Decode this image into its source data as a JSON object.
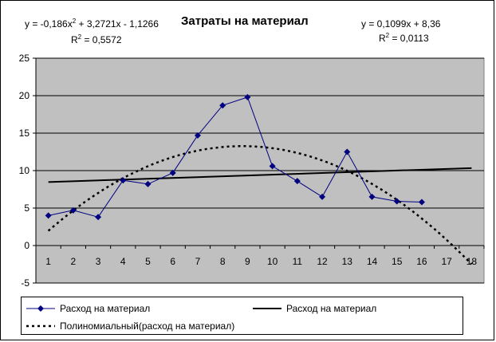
{
  "chart_data": {
    "type": "line",
    "title": "Затраты на материал",
    "x": [
      1,
      2,
      3,
      4,
      5,
      6,
      7,
      8,
      9,
      10,
      11,
      12,
      13,
      14,
      15,
      16
    ],
    "series": [
      {
        "name": "Расход на материал",
        "values": [
          4.0,
          4.7,
          3.8,
          8.7,
          8.2,
          9.7,
          14.7,
          18.7,
          19.8,
          10.6,
          8.6,
          6.5,
          12.5,
          6.5,
          5.9,
          5.8
        ],
        "color": "#000080"
      }
    ],
    "trendlines": [
      {
        "name": "Расход на материал",
        "kind": "linear",
        "slope": 0.1099,
        "intercept": 8.36,
        "x_range": [
          1,
          18
        ],
        "color": "#000000"
      },
      {
        "name": "Полиномиальный(расход на материал)",
        "kind": "polynomial",
        "coefficients": [
          -0.186,
          3.2721,
          -1.1266
        ],
        "x_range": [
          1,
          18
        ],
        "color": "#000000"
      }
    ],
    "x_ticks": [
      "1",
      "2",
      "3",
      "4",
      "5",
      "6",
      "7",
      "8",
      "9",
      "10",
      "11",
      "12",
      "13",
      "14",
      "15",
      "16",
      "17",
      "18"
    ],
    "y_ticks": [
      "25",
      "20",
      "15",
      "10",
      "5",
      "0",
      "-5"
    ],
    "ylim": [
      -5,
      25
    ],
    "grid": true,
    "legend": "bottom",
    "plot_background": "#c0c0c0"
  },
  "equations": {
    "poly_line1_a": "y = -0,186x",
    "poly_line1_exp": "2",
    "poly_line1_b": " + 3,2721x - 1,1266",
    "poly_r2_a": "R",
    "poly_r2_exp": "2",
    "poly_r2_b": " = 0,5572",
    "lin_line1": "y = 0,1099x + 8,36",
    "lin_r2_a": "R",
    "lin_r2_exp": "2",
    "lin_r2_b": " = 0,0113"
  }
}
